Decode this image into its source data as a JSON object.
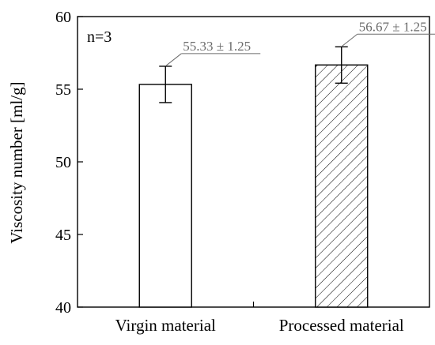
{
  "chart_data": {
    "type": "bar",
    "title": "",
    "xlabel": "",
    "ylabel": "Viscosity number [ml/g]",
    "ylim": [
      40,
      60
    ],
    "yticks": [
      40,
      45,
      50,
      55,
      60
    ],
    "categories": [
      "Virgin material",
      "Processed material"
    ],
    "values": [
      55.33,
      56.67
    ],
    "errors": [
      1.25,
      1.25
    ],
    "labels": [
      "55.33 ± 1.25",
      "56.67 ± 1.25"
    ],
    "patterns": [
      "none",
      "diagonal-hatch"
    ],
    "annotation": "n=3",
    "grid": false,
    "legend": "none"
  },
  "colors": {
    "axis": "#000000",
    "bar_fill": "#ffffff",
    "bar_stroke": "#000000",
    "label_text": "#6b6b6b",
    "leader_line": "#6b6b6b"
  }
}
